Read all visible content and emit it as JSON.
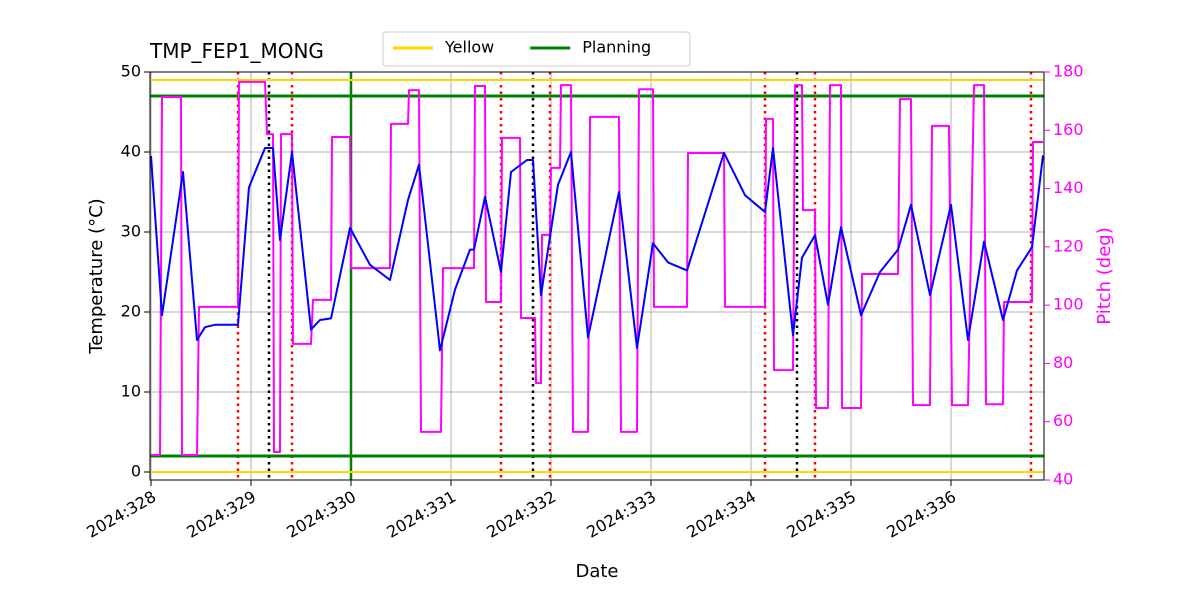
{
  "chart_data": {
    "type": "line",
    "title": "TMP_FEP1_MONG",
    "xlabel": "Date",
    "ylabel": "Temperature (°C)",
    "y2label": "Pitch (deg)",
    "y2color": "#ff00ff",
    "grid": true,
    "legend": "top",
    "xlim": [
      327.99,
      336.93
    ],
    "xticks": [
      {
        "value": 328,
        "label": "2024:328"
      },
      {
        "value": 329,
        "label": "2024:329"
      },
      {
        "value": 330,
        "label": "2024:330"
      },
      {
        "value": 331,
        "label": "2024:331"
      },
      {
        "value": 332,
        "label": "2024:332"
      },
      {
        "value": 333,
        "label": "2024:333"
      },
      {
        "value": 334,
        "label": "2024:334"
      },
      {
        "value": 335,
        "label": "2024:335"
      },
      {
        "value": 336,
        "label": "2024:336"
      }
    ],
    "ylim": [
      -1,
      50
    ],
    "yticks": [
      0,
      10,
      20,
      30,
      40,
      50
    ],
    "y2lim": [
      40,
      180
    ],
    "y2ticks": [
      40,
      60,
      80,
      100,
      120,
      140,
      160,
      180
    ],
    "series": [
      {
        "color": "#ff00ff",
        "axis": "y2",
        "x": [
          328.0,
          328.09,
          328.11,
          328.3,
          328.31,
          328.46,
          328.48,
          328.87,
          328.88,
          329.14,
          329.16,
          329.22,
          329.23,
          329.29,
          329.3,
          329.41,
          329.42,
          329.6,
          329.62,
          329.8,
          329.81,
          329.99,
          330.0,
          330.39,
          330.4,
          330.57,
          330.58,
          330.68,
          330.7,
          330.9,
          330.92,
          331.23,
          331.24,
          331.34,
          331.35,
          331.5,
          331.51,
          331.69,
          331.7,
          331.84,
          331.85,
          331.9,
          331.91,
          331.99,
          332.0,
          332.09,
          332.1,
          332.2,
          332.22,
          332.37,
          332.39,
          332.68,
          332.7,
          332.86,
          332.88,
          333.02,
          333.03,
          333.36,
          333.37,
          333.73,
          333.74,
          334.14,
          334.15,
          334.22,
          334.23,
          334.42,
          334.44,
          334.51,
          334.52,
          334.64,
          334.65,
          334.77,
          334.79,
          334.9,
          334.91,
          335.1,
          335.11,
          335.47,
          335.49,
          335.6,
          335.62,
          335.79,
          335.81,
          335.98,
          336.01,
          336.17,
          336.23,
          336.33,
          336.35,
          336.52,
          336.53,
          336.81,
          336.82,
          336.92
        ],
        "values": [
          48.6,
          48.6,
          171.4,
          171.4,
          48.6,
          48.6,
          99.4,
          99.4,
          176.6,
          176.6,
          158.7,
          158.7,
          49.6,
          49.6,
          158.7,
          158.7,
          86.7,
          86.7,
          101.8,
          101.8,
          157.7,
          157.7,
          112.7,
          112.7,
          162.2,
          162.2,
          173.8,
          173.8,
          56.5,
          56.5,
          112.7,
          112.7,
          175.2,
          175.2,
          101.1,
          101.1,
          157.4,
          157.4,
          95.6,
          95.6,
          73.3,
          73.3,
          124.1,
          124.1,
          147.1,
          147.1,
          175.5,
          175.5,
          56.5,
          56.5,
          164.6,
          164.6,
          56.5,
          56.5,
          174.1,
          174.1,
          99.4,
          99.4,
          152.2,
          152.2,
          99.4,
          99.4,
          163.9,
          163.9,
          77.7,
          77.7,
          175.5,
          175.5,
          132.6,
          132.6,
          64.7,
          64.7,
          175.5,
          175.5,
          64.7,
          64.7,
          110.7,
          110.7,
          170.7,
          170.7,
          65.7,
          65.7,
          161.5,
          161.5,
          65.7,
          65.7,
          175.5,
          175.5,
          66.0,
          66.0,
          101.1,
          101.1,
          156.0,
          156.0
        ]
      },
      {
        "color": "#0000ff",
        "x": [
          328.0,
          328.11,
          328.32,
          328.46,
          328.54,
          328.64,
          328.87,
          328.98,
          329.14,
          329.22,
          329.29,
          329.41,
          329.6,
          329.69,
          329.8,
          329.99,
          330.19,
          330.39,
          330.57,
          330.68,
          330.89,
          331.04,
          331.19,
          331.23,
          331.34,
          331.5,
          331.6,
          331.76,
          331.82,
          331.9,
          332.07,
          332.2,
          332.37,
          332.68,
          332.86,
          333.02,
          333.17,
          333.36,
          333.73,
          333.94,
          334.14,
          334.22,
          334.42,
          334.51,
          334.64,
          334.77,
          334.9,
          335.1,
          335.29,
          335.47,
          335.6,
          335.79,
          336.0,
          336.17,
          336.33,
          336.52,
          336.66,
          336.81,
          336.92
        ],
        "values": [
          39.5,
          19.6,
          37.5,
          16.5,
          18.1,
          18.4,
          18.4,
          35.6,
          40.5,
          40.5,
          29,
          40,
          17.8,
          19,
          19.2,
          30.5,
          25.9,
          24,
          34,
          38.4,
          15.2,
          22.8,
          27.8,
          27.8,
          34.4,
          25,
          37.5,
          39,
          39,
          22.1,
          35.9,
          40,
          16.8,
          35,
          15.5,
          28.6,
          26.2,
          25.2,
          39.9,
          34.6,
          32.5,
          40.5,
          17.1,
          26.8,
          29.6,
          20.9,
          30.6,
          19.6,
          25,
          27.8,
          33.4,
          22.1,
          33.4,
          16.5,
          28.8,
          19,
          25.2,
          28.1,
          39.6
        ]
      }
    ],
    "hlines": [
      {
        "name": "Yellow",
        "color": "#ffd700",
        "values": [
          0,
          49
        ]
      },
      {
        "name": "Planning",
        "color": "#008000",
        "values": [
          2,
          47
        ]
      }
    ],
    "vlines": [
      {
        "color": "#ff0000",
        "style": "dotted",
        "x": [
          328.87,
          329.41,
          331.5,
          331.99,
          334.14,
          334.64,
          336.8
        ]
      },
      {
        "color": "#000000",
        "style": "dotted",
        "x": [
          329.18,
          331.82,
          334.46
        ]
      },
      {
        "color": "#008000",
        "style": "solid",
        "x": [
          330.0
        ]
      }
    ]
  }
}
